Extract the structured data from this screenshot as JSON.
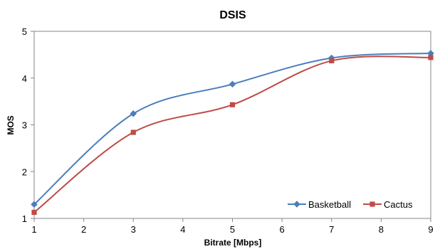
{
  "chart_data": {
    "type": "line",
    "title": "DSIS",
    "xlabel": "Bitrate [Mbps]",
    "ylabel": "MOS",
    "xlim": [
      1,
      9
    ],
    "ylim": [
      1,
      5
    ],
    "xticks": [
      1,
      2,
      3,
      4,
      5,
      6,
      7,
      8,
      9
    ],
    "yticks": [
      1,
      2,
      3,
      4,
      5
    ],
    "grid": false,
    "smooth": true,
    "legend_position": "bottom-right",
    "series": [
      {
        "name": "Basketball",
        "color": "#4a7ebb",
        "marker": "diamond",
        "x": [
          1,
          3,
          5,
          7,
          9
        ],
        "y": [
          1.3,
          3.24,
          3.87,
          4.43,
          4.53
        ]
      },
      {
        "name": "Cactus",
        "color": "#be4b48",
        "marker": "square",
        "x": [
          1,
          3,
          5,
          7,
          9
        ],
        "y": [
          1.13,
          2.84,
          3.43,
          4.37,
          4.44
        ]
      }
    ]
  }
}
